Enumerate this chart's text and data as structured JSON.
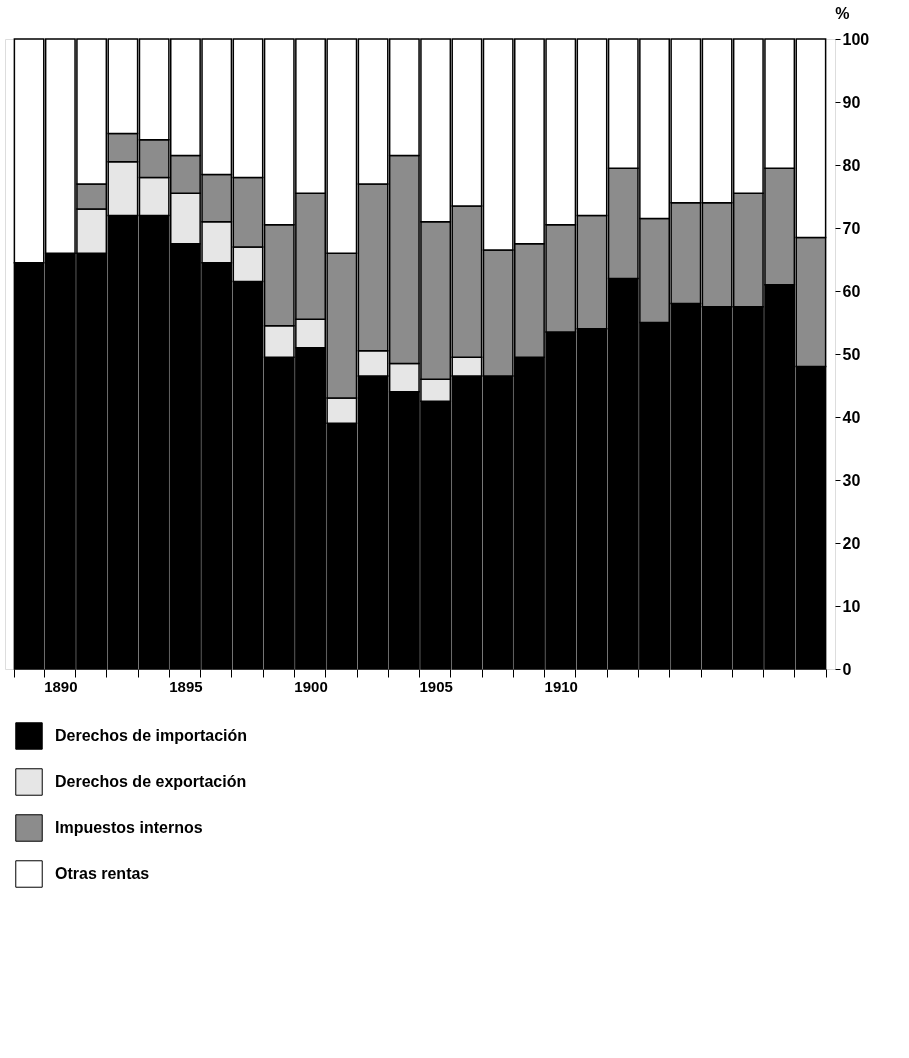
{
  "chart_data": {
    "type": "bar",
    "stacked": true,
    "categories": [
      null,
      "1890",
      null,
      null,
      null,
      "1895",
      null,
      null,
      null,
      "1900",
      null,
      null,
      null,
      "1905",
      null,
      null,
      null,
      "1910",
      null,
      null,
      null,
      null,
      null,
      null,
      null,
      null
    ],
    "ylabel": "%",
    "ylim": [
      0,
      100
    ],
    "yticks": [
      0,
      10,
      20,
      30,
      40,
      50,
      60,
      70,
      80,
      90,
      100
    ],
    "grid": false,
    "legend": "bottom",
    "series": [
      {
        "name": "Derechos de importación",
        "color": "#000000",
        "values": [
          64.5,
          66,
          66,
          72,
          72,
          67.5,
          64.5,
          61.5,
          49.5,
          51,
          39,
          46.5,
          44,
          42.5,
          46.5,
          46.5,
          49.5,
          53.5,
          54,
          62,
          55,
          58,
          57.5,
          57.5,
          61,
          48
        ]
      },
      {
        "name": "Derechos de exportación",
        "color": "#e6e6e6",
        "values": [
          0,
          0,
          7,
          8.5,
          6,
          8,
          6.5,
          5.5,
          5,
          4.5,
          4,
          4,
          4.5,
          3.5,
          3,
          0,
          0,
          0,
          0,
          0,
          0,
          0,
          0,
          0,
          0,
          0
        ]
      },
      {
        "name": "Impuestos internos",
        "color": "#8c8c8c",
        "values": [
          0,
          0,
          4,
          4.5,
          6,
          6,
          7.5,
          11,
          16,
          20,
          23,
          26.5,
          33,
          25,
          24,
          20,
          18,
          17,
          18,
          17.5,
          16.5,
          16,
          16.5,
          18,
          18.5,
          20.5
        ]
      },
      {
        "name": "Otras rentas",
        "color": "#ffffff",
        "values": [
          35.5,
          34,
          23,
          15,
          16,
          18.5,
          21.5,
          22,
          29.5,
          24.5,
          34,
          23,
          18.5,
          29,
          26.5,
          33.5,
          32.5,
          29.5,
          28,
          20.5,
          28.5,
          26,
          26,
          24.5,
          20.5,
          31.5
        ]
      }
    ]
  }
}
